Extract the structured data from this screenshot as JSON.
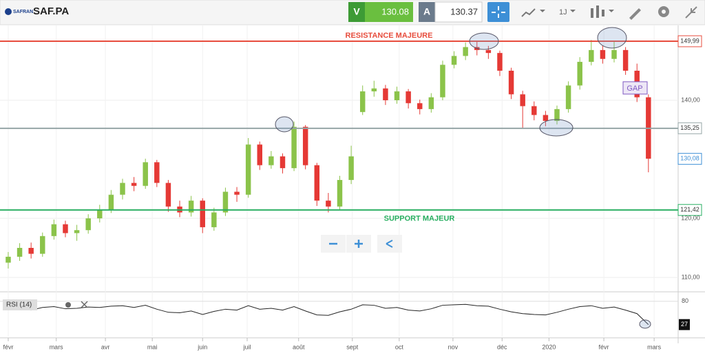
{
  "toolbar": {
    "logo": "SAFRAN",
    "symbol": "SAF.PA",
    "sell_label": "V",
    "sell_price": "130.08",
    "buy_label": "A",
    "buy_price": "130.37",
    "interval": "1J"
  },
  "chart_data": {
    "type": "candlestick",
    "xlim": [
      -0.72,
      58.6
    ],
    "xticks": [
      {
        "value": 0,
        "label": "févr"
      },
      {
        "value": 4.2,
        "label": "mars"
      },
      {
        "value": 8.5,
        "label": "avr"
      },
      {
        "value": 12.6,
        "label": "mai"
      },
      {
        "value": 17,
        "label": "juin"
      },
      {
        "value": 20.9,
        "label": "juil"
      },
      {
        "value": 25.4,
        "label": "août"
      },
      {
        "value": 30.1,
        "label": "sept"
      },
      {
        "value": 34.2,
        "label": "oct"
      },
      {
        "value": 38.9,
        "label": "nov"
      },
      {
        "value": 43.2,
        "label": "déc"
      },
      {
        "value": 47.3,
        "label": "2020"
      },
      {
        "value": 52.1,
        "label": "févr"
      },
      {
        "value": 56.5,
        "label": "mars"
      }
    ],
    "ylim": [
      107.56,
      152.67
    ],
    "yticks": [
      {
        "value": 110,
        "label": "110,00"
      },
      {
        "value": 120,
        "label": "120,00"
      },
      {
        "value": 140,
        "label": "140,00"
      }
    ],
    "grid": true,
    "up_color": "#8bc34a",
    "down_color": "#e53935",
    "open": [
      112.5,
      113.5,
      115,
      114,
      117,
      119,
      117.5,
      118,
      120,
      121.5,
      124,
      126,
      125.5,
      129.5,
      126,
      122,
      121,
      123,
      118.5,
      121,
      124.5,
      124,
      132.5,
      129,
      130.5,
      128.5,
      135.5,
      129,
      123,
      122,
      126.5,
      138,
      141.5,
      142,
      140,
      141.5,
      139.5,
      138.5,
      140.5,
      146,
      147.5,
      149,
      148.5,
      148,
      145,
      141,
      139,
      137.5,
      136.5,
      138.5,
      142.5,
      146.5,
      148.5,
      147,
      148.5,
      145,
      140.5
    ],
    "high": [
      114.3,
      115.8,
      115.9,
      117.6,
      119.8,
      119.6,
      118.9,
      120.7,
      122.3,
      124.8,
      126.7,
      127,
      130.1,
      129.9,
      126.5,
      123,
      123.8,
      123.4,
      121.8,
      125.2,
      125.3,
      133.6,
      133,
      131.4,
      131,
      136.4,
      135.8,
      129.4,
      124.3,
      127.2,
      132.3,
      142.5,
      143.3,
      142.6,
      142.3,
      141.9,
      140.1,
      141.2,
      146.7,
      148.3,
      149.8,
      149.9,
      149.2,
      148.4,
      145.5,
      141.6,
      139.8,
      138.2,
      139.1,
      143.2,
      147.3,
      150.2,
      149.3,
      149.9,
      149,
      146.2,
      141
    ],
    "low": [
      111.5,
      112.8,
      113.2,
      113.5,
      116.4,
      116.8,
      116.2,
      117.4,
      119.3,
      120.9,
      123.2,
      124.6,
      125,
      125.3,
      121.1,
      120.2,
      120.3,
      117.5,
      117.9,
      120.4,
      122.8,
      123.5,
      128.2,
      128.4,
      127.6,
      128,
      128.3,
      122.1,
      121,
      121.5,
      125.8,
      137.5,
      140.6,
      139.2,
      139.4,
      138.6,
      137.6,
      137.9,
      140,
      145.4,
      146.8,
      147.6,
      147,
      144.1,
      140.2,
      135.2,
      136.6,
      135.6,
      135.9,
      137.9,
      141.8,
      145.9,
      146.2,
      146.4,
      144.3,
      139.7,
      127.8
    ],
    "close": [
      113.5,
      115,
      114,
      117,
      119,
      117.5,
      118,
      120,
      121.5,
      124,
      126,
      125.5,
      129.5,
      126,
      122,
      121,
      123,
      118.5,
      121,
      124.5,
      124,
      132.5,
      129,
      130.5,
      128.5,
      135.5,
      129,
      123,
      122,
      126.5,
      130.5,
      141.5,
      142,
      140,
      141.5,
      139.5,
      138.5,
      140.5,
      146,
      147.5,
      149,
      148.5,
      148,
      145,
      141,
      139,
      137.5,
      136.5,
      138.5,
      142.5,
      146.5,
      148.5,
      147,
      148.5,
      145,
      140.5,
      130.1
    ],
    "levels": [
      {
        "value": 149.99,
        "label": "149,99",
        "color": "#e74c3c",
        "annotation": "RESISTANCE MAJEURE"
      },
      {
        "value": 135.25,
        "label": "135,25",
        "color": "#95a5a6"
      },
      {
        "value": 121.42,
        "label": "121,42",
        "color": "#27ae60",
        "annotation": "SUPPORT MAJEUR"
      }
    ],
    "last_price": {
      "value": 130.08,
      "label": "130,08",
      "color": "#3d8fd6"
    },
    "gap_annotation": "GAP",
    "rsi": {
      "name": "RSI (14)",
      "ylim": [
        0,
        100
      ],
      "yticks": [
        80
      ],
      "color": "#222",
      "values": [
        62,
        64,
        60,
        66,
        68,
        63,
        64,
        67,
        66,
        69,
        70,
        66,
        71,
        62,
        55,
        54,
        58,
        50,
        57,
        62,
        60,
        70,
        62,
        64,
        60,
        68,
        58,
        49,
        48,
        56,
        62,
        72,
        71,
        64,
        66,
        60,
        58,
        63,
        71,
        72,
        73,
        70,
        69,
        62,
        56,
        52,
        50,
        49,
        55,
        62,
        68,
        70,
        64,
        67,
        60,
        52,
        27
      ]
    }
  }
}
